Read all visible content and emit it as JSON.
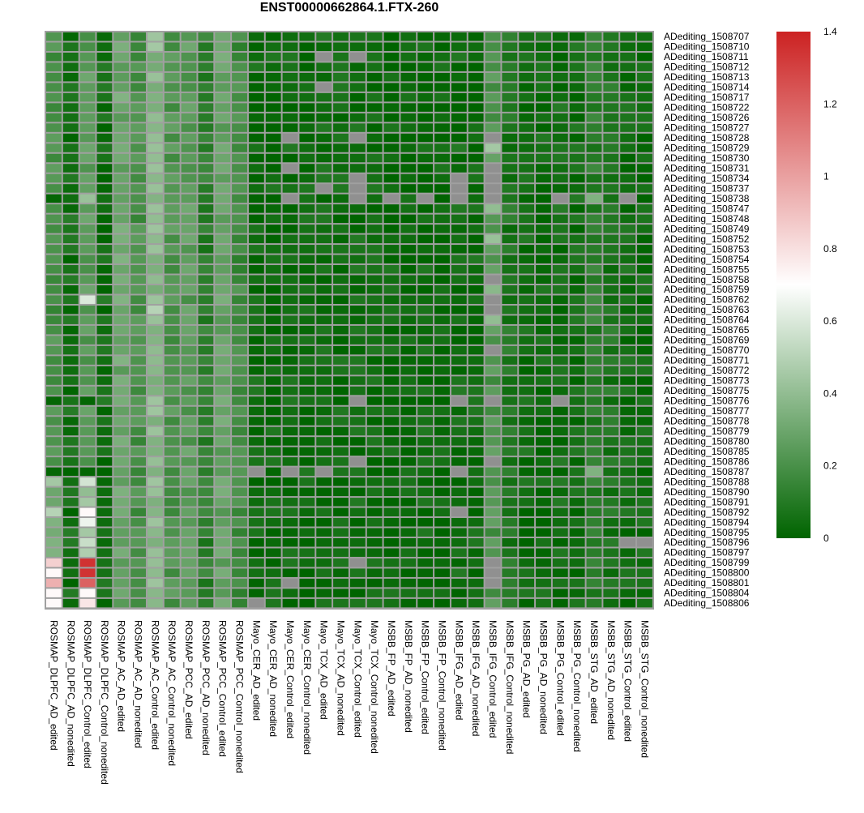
{
  "chart_data": {
    "type": "heatmap",
    "title": "ENST00000662864.1.FTX-260",
    "columns": [
      "ROSMAP_DLPFC_AD_edited",
      "ROSMAP_DLPFC_AD_nonedited",
      "ROSMAP_DLPFC_Control_edited",
      "ROSMAP_DLPFC_Control_nonedited",
      "ROSMAP_AC_AD_edited",
      "ROSMAP_AC_AD_nonedited",
      "ROSMAP_AC_Control_edited",
      "ROSMAP_AC_Control_nonedited",
      "ROSMAP_PCC_AD_edited",
      "ROSMAP_PCC_AD_nonedited",
      "ROSMAP_PCC_Control_edited",
      "ROSMAP_PCC_Control_nonedited",
      "Mayo_CER_AD_edited",
      "Mayo_CER_AD_nonedited",
      "Mayo_CER_Control_edited",
      "Mayo_CER_Control_nonedited",
      "Mayo_TCX_AD_edited",
      "Mayo_TCX_AD_nonedited",
      "Mayo_TCX_Control_edited",
      "Mayo_TCX_Control_nonedited",
      "MSBB_FP_AD_edited",
      "MSBB_FP_AD_nonedited",
      "MSBB_FP_Control_edited",
      "MSBB_FP_Control_nonedited",
      "MSBB_IFG_AD_edited",
      "MSBB_IFG_AD_nonedited",
      "MSBB_IFG_Control_edited",
      "MSBB_IFG_Control_nonedited",
      "MSBB_PG_AD_edited",
      "MSBB_PG_AD_nonedited",
      "MSBB_PG_Control_edited",
      "MSBB_PG_Control_nonedited",
      "MSBB_STG_AD_edited",
      "MSBB_STG_AD_nonedited",
      "MSBB_STG_Control_edited",
      "MSBB_STG_Control_nonedited"
    ],
    "rows": [
      "ADediting_1508707",
      "ADediting_1508710",
      "ADediting_1508711",
      "ADediting_1508712",
      "ADediting_1508713",
      "ADediting_1508714",
      "ADediting_1508717",
      "ADediting_1508722",
      "ADediting_1508726",
      "ADediting_1508727",
      "ADediting_1508728",
      "ADediting_1508729",
      "ADediting_1508730",
      "ADediting_1508731",
      "ADediting_1508734",
      "ADediting_1508737",
      "ADediting_1508738",
      "ADediting_1508747",
      "ADediting_1508748",
      "ADediting_1508749",
      "ADediting_1508752",
      "ADediting_1508753",
      "ADediting_1508754",
      "ADediting_1508755",
      "ADediting_1508758",
      "ADediting_1508759",
      "ADediting_1508762",
      "ADediting_1508763",
      "ADediting_1508764",
      "ADediting_1508765",
      "ADediting_1508769",
      "ADediting_1508770",
      "ADediting_1508771",
      "ADediting_1508772",
      "ADediting_1508773",
      "ADediting_1508775",
      "ADediting_1508776",
      "ADediting_1508777",
      "ADediting_1508778",
      "ADediting_1508779",
      "ADediting_1508780",
      "ADediting_1508785",
      "ADediting_1508786",
      "ADediting_1508787",
      "ADediting_1508788",
      "ADediting_1508790",
      "ADediting_1508791",
      "ADediting_1508792",
      "ADediting_1508794",
      "ADediting_1508795",
      "ADediting_1508796",
      "ADediting_1508797",
      "ADediting_1508799",
      "ADediting_1508800",
      "ADediting_1508801",
      "ADediting_1508804",
      "ADediting_1508806"
    ],
    "column_base_values": [
      0.2,
      0.05,
      0.25,
      0.05,
      0.3,
      0.2,
      0.38,
      0.22,
      0.25,
      0.12,
      0.28,
      0.18,
      0.03,
      0.03,
      0.04,
      0.03,
      0.04,
      0.03,
      0.04,
      0.03,
      0.03,
      0.02,
      0.03,
      0.02,
      0.04,
      0.03,
      0.22,
      0.08,
      0.04,
      0.03,
      0.05,
      0.04,
      0.12,
      0.08,
      0.04,
      0.03
    ],
    "overrides": [
      {
        "row": "ADediting_1508707",
        "col": "ROSMAP_DLPFC_AD_edited",
        "value": 0.22
      },
      {
        "row": "ADediting_1508710",
        "col": "ROSMAP_AC_Control_edited",
        "value": 0.45
      },
      {
        "row": "ADediting_1508711",
        "col": "Mayo_TCX_AD_edited",
        "value": "NA"
      },
      {
        "row": "ADediting_1508711",
        "col": "Mayo_TCX_Control_edited",
        "value": "NA"
      },
      {
        "row": "ADediting_1508714",
        "col": "Mayo_TCX_AD_edited",
        "value": "NA"
      },
      {
        "row": "ADediting_1508728",
        "col": "Mayo_CER_Control_edited",
        "value": "NA"
      },
      {
        "row": "ADediting_1508728",
        "col": "Mayo_TCX_Control_edited",
        "value": "NA"
      },
      {
        "row": "ADediting_1508728",
        "col": "MSBB_IFG_Control_edited",
        "value": "NA"
      },
      {
        "row": "ADediting_1508729",
        "col": "MSBB_IFG_Control_edited",
        "value": 0.45
      },
      {
        "row": "ADediting_1508731",
        "col": "Mayo_CER_Control_edited",
        "value": "NA"
      },
      {
        "row": "ADediting_1508731",
        "col": "MSBB_IFG_Control_edited",
        "value": "NA"
      },
      {
        "row": "ADediting_1508734",
        "col": "Mayo_TCX_Control_edited",
        "value": "NA"
      },
      {
        "row": "ADediting_1508734",
        "col": "MSBB_IFG_AD_edited",
        "value": "NA"
      },
      {
        "row": "ADediting_1508734",
        "col": "MSBB_IFG_Control_edited",
        "value": "NA"
      },
      {
        "row": "ADediting_1508737",
        "col": "Mayo_TCX_AD_edited",
        "value": "NA"
      },
      {
        "row": "ADediting_1508737",
        "col": "Mayo_TCX_Control_edited",
        "value": "NA"
      },
      {
        "row": "ADediting_1508737",
        "col": "MSBB_IFG_AD_edited",
        "value": "NA"
      },
      {
        "row": "ADediting_1508737",
        "col": "MSBB_IFG_Control_edited",
        "value": "NA"
      },
      {
        "row": "ADediting_1508738",
        "col": "ROSMAP_DLPFC_AD_edited",
        "value": 0.01
      },
      {
        "row": "ADediting_1508738",
        "col": "ROSMAP_DLPFC_Control_edited",
        "value": 0.42
      },
      {
        "row": "ADediting_1508738",
        "col": "Mayo_CER_Control_edited",
        "value": "NA"
      },
      {
        "row": "ADediting_1508738",
        "col": "Mayo_TCX_Control_edited",
        "value": "NA"
      },
      {
        "row": "ADediting_1508738",
        "col": "MSBB_FP_AD_edited",
        "value": "NA"
      },
      {
        "row": "ADediting_1508738",
        "col": "MSBB_FP_Control_edited",
        "value": "NA"
      },
      {
        "row": "ADediting_1508738",
        "col": "MSBB_IFG_AD_edited",
        "value": "NA"
      },
      {
        "row": "ADediting_1508738",
        "col": "MSBB_IFG_Control_edited",
        "value": "NA"
      },
      {
        "row": "ADediting_1508738",
        "col": "MSBB_PG_Control_edited",
        "value": "NA"
      },
      {
        "row": "ADediting_1508738",
        "col": "MSBB_STG_AD_edited",
        "value": 0.35
      },
      {
        "row": "ADediting_1508738",
        "col": "MSBB_STG_Control_edited",
        "value": "NA"
      },
      {
        "row": "ADediting_1508747",
        "col": "MSBB_IFG_Control_edited",
        "value": 0.4
      },
      {
        "row": "ADediting_1508752",
        "col": "MSBB_IFG_Control_edited",
        "value": 0.42
      },
      {
        "row": "ADediting_1508758",
        "col": "MSBB_IFG_Control_edited",
        "value": "NA"
      },
      {
        "row": "ADediting_1508759",
        "col": "MSBB_IFG_Control_edited",
        "value": 0.38
      },
      {
        "row": "ADediting_1508762",
        "col": "ROSMAP_DLPFC_Control_edited",
        "value": 0.6
      },
      {
        "row": "ADediting_1508762",
        "col": "MSBB_IFG_Control_edited",
        "value": "NA"
      },
      {
        "row": "ADediting_1508763",
        "col": "ROSMAP_AC_Control_edited",
        "value": 0.5
      },
      {
        "row": "ADediting_1508763",
        "col": "MSBB_IFG_Control_edited",
        "value": "NA"
      },
      {
        "row": "ADediting_1508764",
        "col": "MSBB_IFG_Control_edited",
        "value": 0.4
      },
      {
        "row": "ADediting_1508770",
        "col": "MSBB_IFG_Control_edited",
        "value": "NA"
      },
      {
        "row": "ADediting_1508776",
        "col": "ROSMAP_DLPFC_AD_edited",
        "value": 0.01
      },
      {
        "row": "ADediting_1508776",
        "col": "ROSMAP_DLPFC_Control_edited",
        "value": 0.01
      },
      {
        "row": "ADediting_1508776",
        "col": "Mayo_TCX_Control_edited",
        "value": "NA"
      },
      {
        "row": "ADediting_1508776",
        "col": "MSBB_IFG_AD_edited",
        "value": "NA"
      },
      {
        "row": "ADediting_1508776",
        "col": "MSBB_IFG_Control_edited",
        "value": "NA"
      },
      {
        "row": "ADediting_1508776",
        "col": "MSBB_PG_Control_edited",
        "value": "NA"
      },
      {
        "row": "ADediting_1508786",
        "col": "Mayo_TCX_Control_edited",
        "value": "NA"
      },
      {
        "row": "ADediting_1508786",
        "col": "MSBB_IFG_Control_edited",
        "value": "NA"
      },
      {
        "row": "ADediting_1508787",
        "col": "ROSMAP_DLPFC_AD_edited",
        "value": 0.01
      },
      {
        "row": "ADediting_1508787",
        "col": "ROSMAP_DLPFC_Control_edited",
        "value": 0.01
      },
      {
        "row": "ADediting_1508787",
        "col": "Mayo_CER_AD_edited",
        "value": "NA"
      },
      {
        "row": "ADediting_1508787",
        "col": "Mayo_CER_Control_edited",
        "value": "NA"
      },
      {
        "row": "ADediting_1508787",
        "col": "Mayo_TCX_AD_edited",
        "value": "NA"
      },
      {
        "row": "ADediting_1508787",
        "col": "MSBB_IFG_AD_edited",
        "value": "NA"
      },
      {
        "row": "ADediting_1508787",
        "col": "MSBB_STG_AD_edited",
        "value": 0.35
      },
      {
        "row": "ADediting_1508788",
        "col": "ROSMAP_DLPFC_AD_edited",
        "value": 0.45
      },
      {
        "row": "ADediting_1508788",
        "col": "ROSMAP_DLPFC_Control_edited",
        "value": 0.58
      },
      {
        "row": "ADediting_1508790",
        "col": "ROSMAP_DLPFC_AD_edited",
        "value": 0.3
      },
      {
        "row": "ADediting_1508790",
        "col": "ROSMAP_DLPFC_Control_edited",
        "value": 0.4
      },
      {
        "row": "ADediting_1508791",
        "col": "ROSMAP_DLPFC_AD_edited",
        "value": 0.3
      },
      {
        "row": "ADediting_1508791",
        "col": "ROSMAP_DLPFC_Control_edited",
        "value": 0.45
      },
      {
        "row": "ADediting_1508792",
        "col": "ROSMAP_DLPFC_AD_edited",
        "value": 0.5
      },
      {
        "row": "ADediting_1508792",
        "col": "ROSMAP_DLPFC_Control_edited",
        "value": 0.72
      },
      {
        "row": "ADediting_1508792",
        "col": "MSBB_IFG_AD_edited",
        "value": "NA"
      },
      {
        "row": "ADediting_1508794",
        "col": "ROSMAP_DLPFC_AD_edited",
        "value": 0.35
      },
      {
        "row": "ADediting_1508794",
        "col": "ROSMAP_DLPFC_Control_edited",
        "value": 0.65
      },
      {
        "row": "ADediting_1508795",
        "col": "ROSMAP_DLPFC_AD_edited",
        "value": 0.32
      },
      {
        "row": "ADediting_1508795",
        "col": "ROSMAP_DLPFC_Control_edited",
        "value": 0.45
      },
      {
        "row": "ADediting_1508796",
        "col": "ROSMAP_DLPFC_AD_edited",
        "value": 0.35
      },
      {
        "row": "ADediting_1508796",
        "col": "ROSMAP_DLPFC_Control_edited",
        "value": 0.55
      },
      {
        "row": "ADediting_1508796",
        "col": "MSBB_STG_Control_edited",
        "value": "NA"
      },
      {
        "row": "ADediting_1508796",
        "col": "MSBB_STG_Control_nonedited",
        "value": "NA"
      },
      {
        "row": "ADediting_1508797",
        "col": "ROSMAP_DLPFC_AD_edited",
        "value": 0.35
      },
      {
        "row": "ADediting_1508797",
        "col": "ROSMAP_DLPFC_Control_edited",
        "value": 0.48
      },
      {
        "row": "ADediting_1508799",
        "col": "ROSMAP_DLPFC_AD_edited",
        "value": 0.85
      },
      {
        "row": "ADediting_1508799",
        "col": "ROSMAP_DLPFC_Control_edited",
        "value": 1.35
      },
      {
        "row": "ADediting_1508799",
        "col": "Mayo_TCX_Control_edited",
        "value": "NA"
      },
      {
        "row": "ADediting_1508799",
        "col": "MSBB_IFG_Control_edited",
        "value": "NA"
      },
      {
        "row": "ADediting_1508800",
        "col": "ROSMAP_DLPFC_AD_edited",
        "value": 0.72
      },
      {
        "row": "ADediting_1508800",
        "col": "ROSMAP_DLPFC_Control_edited",
        "value": 1.35
      },
      {
        "row": "ADediting_1508800",
        "col": "MSBB_IFG_Control_edited",
        "value": "NA"
      },
      {
        "row": "ADediting_1508801",
        "col": "ROSMAP_DLPFC_AD_edited",
        "value": 0.95
      },
      {
        "row": "ADediting_1508801",
        "col": "ROSMAP_DLPFC_Control_edited",
        "value": 1.2
      },
      {
        "row": "ADediting_1508801",
        "col": "Mayo_CER_Control_edited",
        "value": "NA"
      },
      {
        "row": "ADediting_1508801",
        "col": "MSBB_IFG_Control_edited",
        "value": "NA"
      },
      {
        "row": "ADediting_1508804",
        "col": "ROSMAP_DLPFC_AD_edited",
        "value": 0.72
      },
      {
        "row": "ADediting_1508804",
        "col": "ROSMAP_DLPFC_Control_edited",
        "value": 0.72
      },
      {
        "row": "ADediting_1508806",
        "col": "ROSMAP_DLPFC_AD_edited",
        "value": 0.72
      },
      {
        "row": "ADediting_1508806",
        "col": "ROSMAP_DLPFC_Control_edited",
        "value": 0.78
      },
      {
        "row": "ADediting_1508806",
        "col": "Mayo_CER_AD_edited",
        "value": "NA"
      }
    ],
    "colorscale": {
      "min": 0,
      "mid": 0.7,
      "max": 1.4,
      "low_color": "#006400",
      "mid_color": "#ffffff",
      "high_color": "#cc2222",
      "na_color": "#909090",
      "border_color": "#a0a0a0"
    },
    "legend_ticks": [
      "1.4",
      "1.2",
      "1",
      "0.8",
      "0.6",
      "0.4",
      "0.2",
      "0"
    ],
    "legend_tick_values": [
      1.4,
      1.2,
      1.0,
      0.8,
      0.6,
      0.4,
      0.2,
      0
    ]
  }
}
